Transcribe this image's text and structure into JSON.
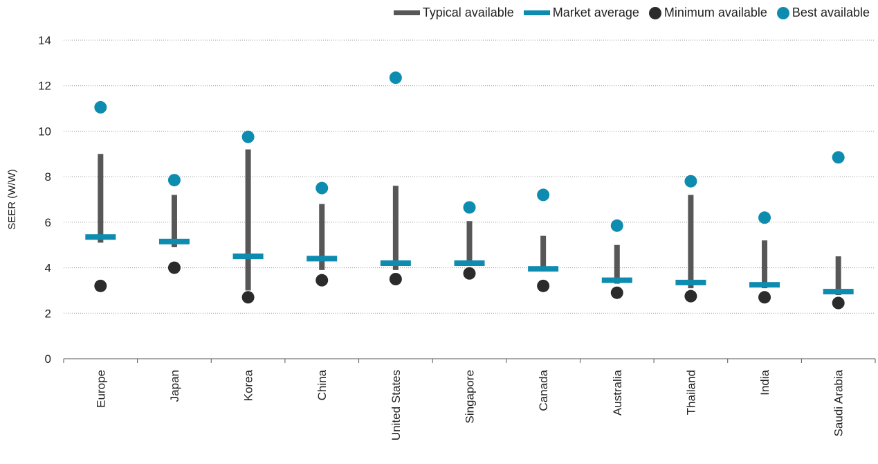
{
  "legend": {
    "typical": "Typical available",
    "average": "Market average",
    "minimum": "Minimum available",
    "best": "Best available"
  },
  "colors": {
    "typical": "#575757",
    "average": "#0e8cb0",
    "minimum": "#2b2b2b",
    "best": "#0e8cb0",
    "grid": "#9a9a9a"
  },
  "chart_data": {
    "type": "range-dot",
    "ylabel": "SEER (W/W)",
    "ylim": [
      0,
      14
    ],
    "yticks": [
      0,
      2,
      4,
      6,
      8,
      10,
      12,
      14
    ],
    "grid": "horizontal dotted",
    "legend_position": "top-right",
    "categories": [
      "Europe",
      "Japan",
      "Korea",
      "China",
      "United States",
      "Singapore",
      "Canada",
      "Australia",
      "Thailand",
      "India",
      "Saudi Arabia"
    ],
    "series": [
      {
        "name": "Typical available",
        "kind": "range",
        "low": [
          5.1,
          4.9,
          3.0,
          3.9,
          3.9,
          4.2,
          3.9,
          3.3,
          3.1,
          3.1,
          2.8
        ],
        "high": [
          9.0,
          7.2,
          9.2,
          6.8,
          7.6,
          6.05,
          5.4,
          5.0,
          7.2,
          5.2,
          4.5
        ]
      },
      {
        "name": "Market average",
        "kind": "bar-marker",
        "values": [
          5.35,
          5.15,
          4.5,
          4.4,
          4.2,
          4.2,
          3.95,
          3.45,
          3.35,
          3.25,
          2.95
        ]
      },
      {
        "name": "Minimum available",
        "kind": "dot",
        "values": [
          3.2,
          4.0,
          2.7,
          3.45,
          3.5,
          3.75,
          3.2,
          2.9,
          2.75,
          2.7,
          2.45
        ]
      },
      {
        "name": "Best available",
        "kind": "dot",
        "values": [
          11.05,
          7.85,
          9.75,
          7.5,
          12.35,
          6.65,
          7.2,
          5.85,
          7.8,
          6.2,
          8.85
        ]
      }
    ]
  }
}
